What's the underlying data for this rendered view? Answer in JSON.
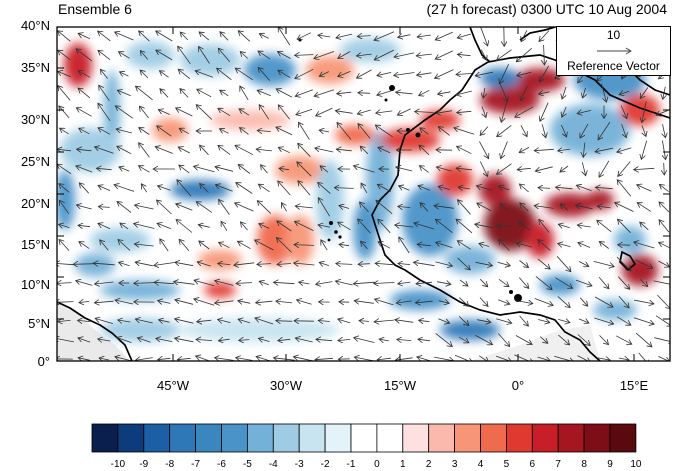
{
  "header": {
    "ensemble_label": "Ensemble 6",
    "forecast_label": "(27 h forecast) 0300 UTC 10 Aug 2004"
  },
  "map": {
    "lon_range": [
      -59,
      20
    ],
    "lat_range": [
      0,
      40
    ],
    "lat_ticks": [
      "40°N",
      "35°N",
      "30°N",
      "25°N",
      "20°N",
      "15°N",
      "10°N",
      "5°N",
      "0°"
    ],
    "lon_ticks": [
      "45°W",
      "30°W",
      "15°W",
      "0°",
      "15°E"
    ],
    "field_colors": {
      "negative": [
        "#0a1f4e",
        "#0d3b7c",
        "#1d5fa5",
        "#2e78b8",
        "#4a93c8",
        "#74b1d8",
        "#9fcce4",
        "#c8e4f0",
        "#e4f3fa"
      ],
      "positive": [
        "#fde0e0",
        "#fbb9ad",
        "#f79677",
        "#f06a4d",
        "#e03a30",
        "#c81e27",
        "#a61620",
        "#7d0d17",
        "#5a0a0e"
      ],
      "neutral": "#ffffff"
    },
    "land_fill": "#d9d9d9",
    "coastline_color": "#000000"
  },
  "reference_vector": {
    "value": "10",
    "label": "Reference Vector"
  },
  "colorbar": {
    "labels": [
      "-10",
      "-9",
      "-8",
      "-7",
      "-6",
      "-5",
      "-4",
      "-3",
      "-2",
      "-1",
      "0",
      "1",
      "2",
      "3",
      "4",
      "5",
      "6",
      "7",
      "8",
      "9",
      "10"
    ],
    "colors": [
      "#0a1f4e",
      "#0d3b7c",
      "#1d5fa5",
      "#2e78b8",
      "#3a87c0",
      "#4a93c8",
      "#74b1d8",
      "#9fcce4",
      "#c8e4f0",
      "#e4f3fa",
      "#ffffff",
      "#ffffff",
      "#fde0e0",
      "#fbb9ad",
      "#f79677",
      "#f06a4d",
      "#e03a30",
      "#c81e27",
      "#a61620",
      "#7d0d17",
      "#5a0a0e"
    ]
  }
}
